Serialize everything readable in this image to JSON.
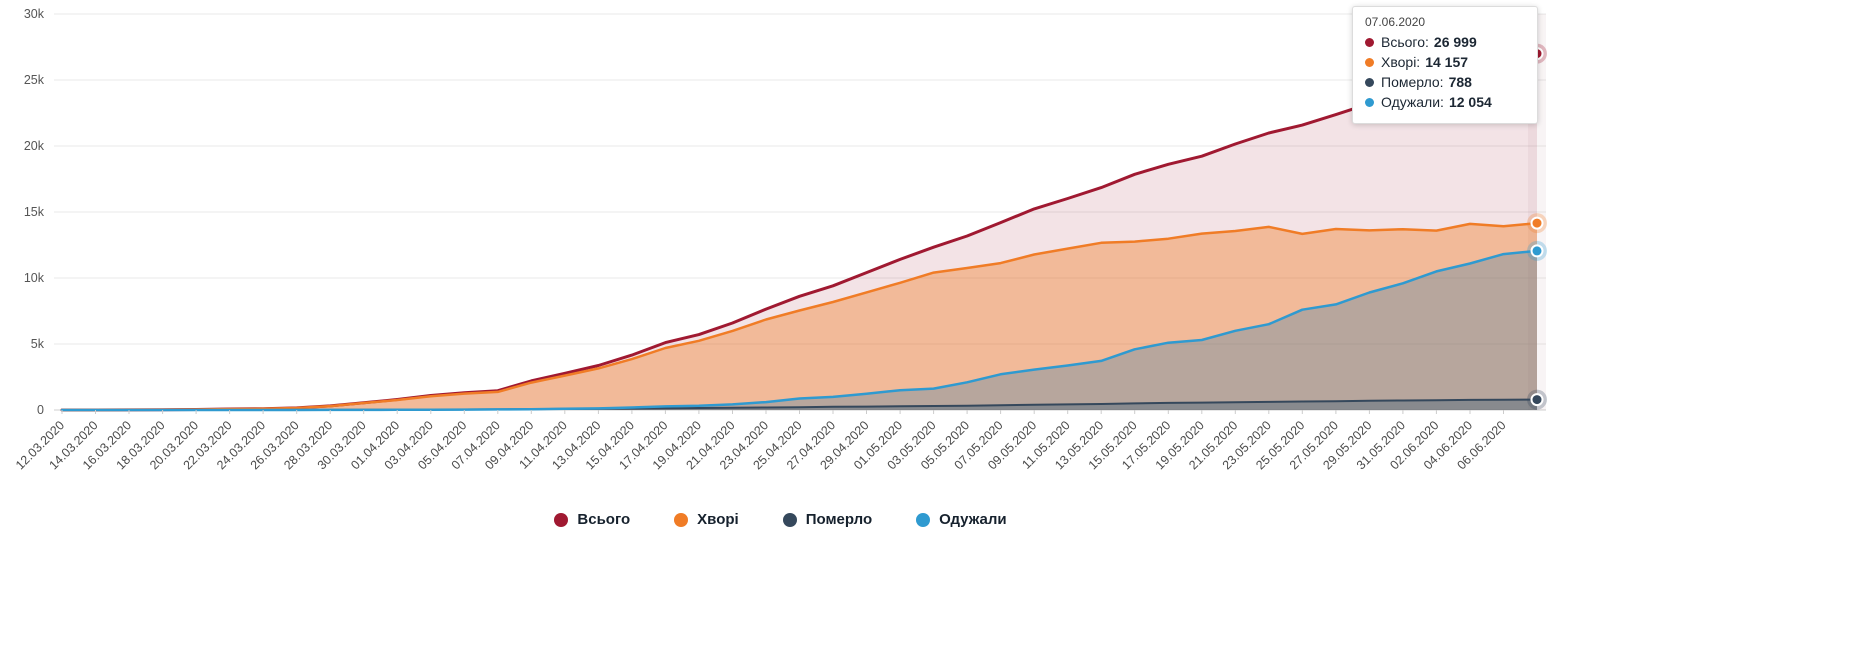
{
  "tooltip": {
    "date": "07.06.2020",
    "rows": [
      {
        "label": "Всього:",
        "value": "26 999"
      },
      {
        "label": "Хворі:",
        "value": "14 157"
      },
      {
        "label": "Померло:",
        "value": "788"
      },
      {
        "label": "Одужали:",
        "value": "12 054"
      }
    ]
  },
  "chart_data": {
    "type": "area",
    "title": "",
    "xlabel": "",
    "ylabel": "",
    "grid": true,
    "legend_position": "bottom",
    "ylim": [
      0,
      30000
    ],
    "yticks": [
      "0",
      "5k",
      "10k",
      "15k",
      "20k",
      "25k",
      "30k"
    ],
    "x": [
      "12.03.2020",
      "14.03.2020",
      "16.03.2020",
      "18.03.2020",
      "20.03.2020",
      "22.03.2020",
      "24.03.2020",
      "26.03.2020",
      "28.03.2020",
      "30.03.2020",
      "01.04.2020",
      "03.04.2020",
      "05.04.2020",
      "07.04.2020",
      "09.04.2020",
      "11.04.2020",
      "13.04.2020",
      "15.04.2020",
      "17.04.2020",
      "19.04.2020",
      "21.04.2020",
      "23.04.2020",
      "25.04.2020",
      "27.04.2020",
      "29.04.2020",
      "01.05.2020",
      "03.05.2020",
      "05.05.2020",
      "07.05.2020",
      "09.05.2020",
      "11.05.2020",
      "13.05.2020",
      "15.05.2020",
      "17.05.2020",
      "19.05.2020",
      "21.05.2020",
      "23.05.2020",
      "25.05.2020",
      "27.05.2020",
      "29.05.2020",
      "31.05.2020",
      "02.06.2020",
      "04.06.2020",
      "06.06.2020",
      "07.06.2020"
    ],
    "visible_tick_count": 44,
    "series": [
      {
        "name": "Всього",
        "color": "#a01931",
        "fill": "rgba(160,25,49,0.12)",
        "line_width": 3,
        "values": [
          3,
          3,
          7,
          14,
          41,
          73,
          97,
          156,
          311,
          548,
          794,
          1096,
          1308,
          1462,
          2203,
          2777,
          3372,
          4161,
          5106,
          5710,
          6592,
          7647,
          8617,
          9410,
          10406,
          11411,
          12331,
          13184,
          14195,
          15232,
          16023,
          16847,
          17858,
          18616,
          19230,
          20148,
          20986,
          21584,
          22382,
          23204,
          24012,
          24823,
          25964,
          26514,
          26999
        ]
      },
      {
        "name": "Хворі",
        "color": "#f07c26",
        "fill": "rgba(240,124,38,0.40)",
        "line_width": 2.5,
        "values": [
          3,
          2,
          6,
          12,
          38,
          69,
          93,
          150,
          298,
          527,
          761,
          1047,
          1243,
          1372,
          2073,
          2605,
          3155,
          3859,
          4698,
          5243,
          5994,
          6853,
          7539,
          8179,
          8907,
          9634,
          10409,
          10760,
          11128,
          11781,
          12225,
          12670,
          12761,
          12981,
          13366,
          13560,
          13869,
          13340,
          13713,
          13608,
          13694,
          13588,
          14102,
          13919,
          14157
        ]
      },
      {
        "name": "Померло",
        "color": "#35485c",
        "fill": "rgba(53,72,92,0.35)",
        "line_width": 2,
        "values": [
          0,
          1,
          1,
          2,
          3,
          3,
          3,
          5,
          8,
          13,
          20,
          28,
          37,
          45,
          69,
          83,
          98,
          116,
          133,
          151,
          174,
          193,
          209,
          239,
          261,
          279,
          303,
          327,
          361,
          391,
          425,
          456,
          497,
          535,
          564,
          588,
          617,
          644,
          669,
          696,
          718,
          735,
          762,
          783,
          788
        ]
      },
      {
        "name": "Одужали",
        "color": "#2f9ad0",
        "fill": "rgba(47,120,170,0.30)",
        "line_width": 2.5,
        "values": [
          0,
          0,
          0,
          0,
          0,
          1,
          1,
          1,
          5,
          8,
          13,
          21,
          28,
          45,
          61,
          89,
          119,
          186,
          275,
          316,
          424,
          601,
          869,
          992,
          1238,
          1498,
          1619,
          2097,
          2706,
          3060,
          3373,
          3721,
          4600,
          5100,
          5300,
          6000,
          6500,
          7600,
          8000,
          8900,
          9600,
          10500,
          11100,
          11812,
          12054
        ]
      }
    ]
  }
}
